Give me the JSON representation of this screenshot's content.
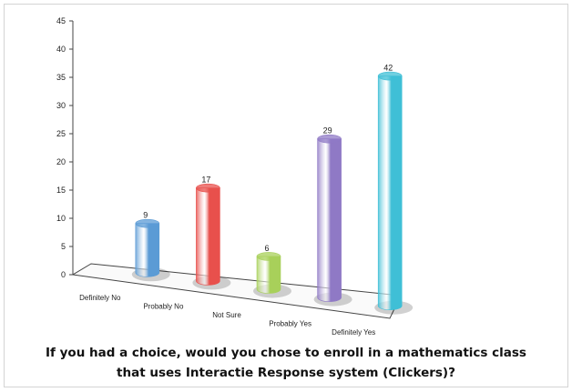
{
  "chart_data": {
    "type": "bar",
    "categories": [
      "Definitely No",
      "Probably No",
      "Not Sure",
      "Probably Yes",
      "Definitely Yes"
    ],
    "values": [
      9,
      17,
      6,
      29,
      42
    ],
    "ylim": [
      0,
      45
    ],
    "yticks": [
      0,
      5,
      10,
      15,
      20,
      25,
      30,
      35,
      40,
      45
    ],
    "title": "If you had a choice, would you chose to enroll in a mathematics class that uses Interactie Response system (Clickers)?",
    "xlabel": "",
    "ylabel": "",
    "grid": false,
    "legend": "none",
    "colors": [
      "#5b9bd5",
      "#e8504c",
      "#a8d05a",
      "#8f79c5",
      "#3fbfd6"
    ]
  }
}
